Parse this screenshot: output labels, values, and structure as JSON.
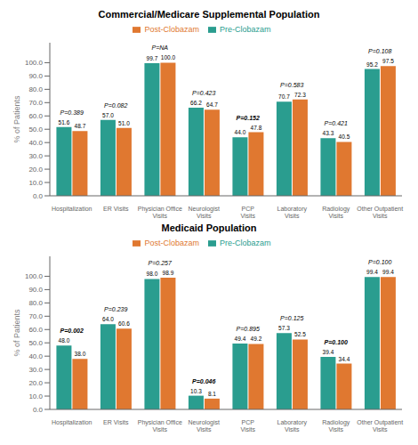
{
  "chart_data": [
    {
      "type": "bar",
      "title": "Commercial/Medicare Supplemental Population",
      "categories": [
        "Hospitalization",
        "ER Visits",
        "Physician Office\nVisits",
        "Neurologist\nVisits",
        "PCP\nVisits",
        "Laboratory\nVisits",
        "Radiology\nVisits",
        "Other Outpatient\nVisits"
      ],
      "series": [
        {
          "name": "Pre-Clobazam",
          "color": "#2a9d8f",
          "values": [
            51.6,
            57.0,
            99.7,
            66.2,
            44.0,
            70.7,
            43.3,
            95.2
          ],
          "value_labels": [
            "51.6",
            "57.0",
            "99.7",
            "66.2",
            "44.0",
            "70.7",
            "43.3",
            "95.2"
          ]
        },
        {
          "name": "Post-Clobazam",
          "color": "#e07830",
          "values": [
            48.7,
            51.0,
            100.0,
            64.7,
            47.8,
            72.3,
            40.5,
            97.5
          ],
          "value_labels": [
            "48.7",
            "51.0",
            "100.0",
            "64.7",
            "47.8",
            "72.3",
            "40.5",
            "97.5"
          ]
        }
      ],
      "annotations": [
        {
          "text": "P=0.389",
          "bold": false
        },
        {
          "text": "P=0.082",
          "bold": false
        },
        {
          "text": "P=NA",
          "bold": false
        },
        {
          "text": "P=0.423",
          "bold": false
        },
        {
          "text": "P=0.152",
          "bold": true
        },
        {
          "text": "P=0.583",
          "bold": false
        },
        {
          "text": "P=0.421",
          "bold": false
        },
        {
          "text": "P=0.108",
          "bold": false
        }
      ],
      "ylabel": "% of Patients",
      "ylim": [
        0,
        115
      ],
      "yticks": [
        {
          "value": 0,
          "label": "0.0"
        },
        {
          "value": 10,
          "label": "10.0"
        },
        {
          "value": 20,
          "label": "20.0"
        },
        {
          "value": 30,
          "label": "30.0"
        },
        {
          "value": 40,
          "label": "40.0"
        },
        {
          "value": 50,
          "label": "50.0"
        },
        {
          "value": 60,
          "label": "60.0"
        },
        {
          "value": 70,
          "label": "70.0"
        },
        {
          "value": 80,
          "label": "80.0"
        },
        {
          "value": 90,
          "label": "90.0"
        },
        {
          "value": 100,
          "label": "100.0"
        }
      ],
      "grid": false,
      "legend": "top",
      "data_labels": true
    },
    {
      "type": "bar",
      "title": "Medicaid Population",
      "categories": [
        "Hospitalization",
        "ER Visits",
        "Physician Office\nVisits",
        "Neurologist\nVisits",
        "PCP\nVisits",
        "Laboratory\nVisits",
        "Radiology\nVisits",
        "Other Outpatient\nVisits"
      ],
      "series": [
        {
          "name": "Pre-Clobazam",
          "color": "#2a9d8f",
          "values": [
            48.0,
            64.0,
            98.0,
            10.3,
            49.4,
            57.3,
            39.4,
            99.4
          ],
          "value_labels": [
            "48.0",
            "64.0",
            "98.0",
            "10.3",
            "49.4",
            "57.3",
            "39.4",
            "99.4"
          ]
        },
        {
          "name": "Post-Clobazam",
          "color": "#e07830",
          "values": [
            38.0,
            60.6,
            98.9,
            8.1,
            49.2,
            52.5,
            34.4,
            99.4
          ],
          "value_labels": [
            "38.0",
            "60.6",
            "98.9",
            "8.1",
            "49.2",
            "52.5",
            "34.4",
            "99.4"
          ]
        }
      ],
      "annotations": [
        {
          "text": "P=0.002",
          "bold": true
        },
        {
          "text": "P=0.239",
          "bold": false
        },
        {
          "text": "P=0.257",
          "bold": false
        },
        {
          "text": "P=0.046",
          "bold": true
        },
        {
          "text": "P=0.895",
          "bold": false
        },
        {
          "text": "P=0.125",
          "bold": false
        },
        {
          "text": "P=0.100",
          "bold": true
        },
        {
          "text": "P=0.100",
          "bold": false
        }
      ],
      "ylabel": "% of Patients",
      "ylim": [
        0,
        115
      ],
      "yticks": [
        {
          "value": 0,
          "label": "0.0"
        },
        {
          "value": 10,
          "label": "10.0"
        },
        {
          "value": 20,
          "label": "20.0"
        },
        {
          "value": 30,
          "label": "30.0"
        },
        {
          "value": 40,
          "label": "40.0"
        },
        {
          "value": 50,
          "label": "50.0"
        },
        {
          "value": 60,
          "label": "60.0"
        },
        {
          "value": 70,
          "label": "70.0"
        },
        {
          "value": 80,
          "label": "80.0"
        },
        {
          "value": 90,
          "label": "90.0"
        },
        {
          "value": 100,
          "label": "100.0"
        }
      ],
      "grid": false,
      "legend": "top",
      "data_labels": true
    }
  ]
}
